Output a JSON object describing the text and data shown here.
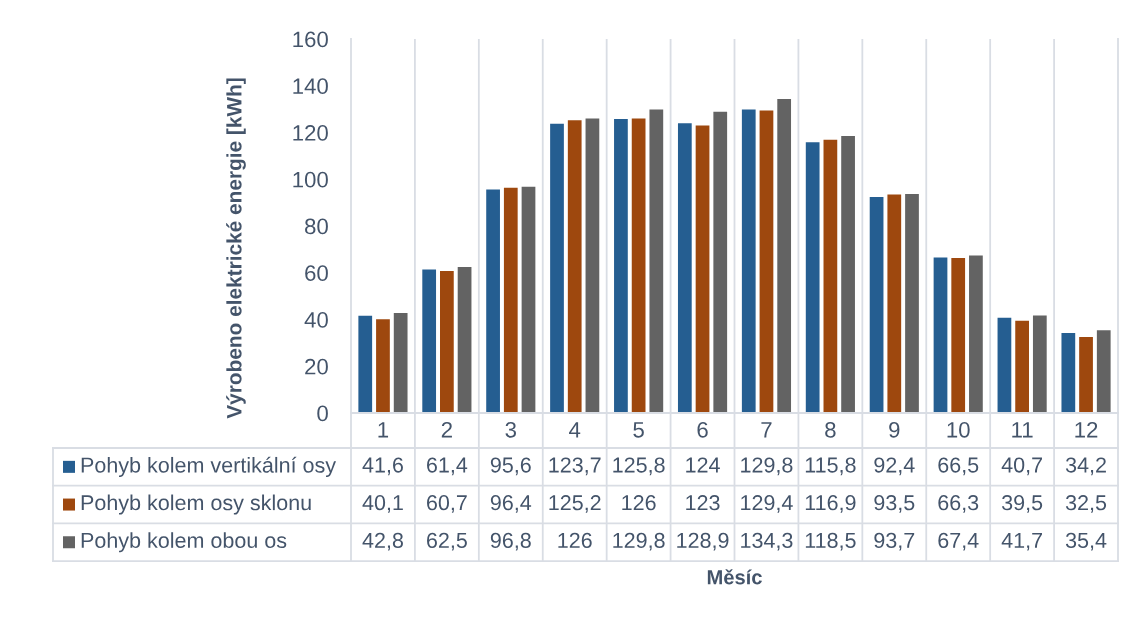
{
  "chart_data": {
    "type": "bar",
    "ylabel": "Výrobeno elektrické energie [kWh]",
    "categories": [
      "1",
      "2",
      "3",
      "4",
      "5",
      "6",
      "7",
      "8",
      "9",
      "10",
      "11",
      "12"
    ],
    "series": [
      {
        "name": "Pohyb kolem vertikální osy",
        "color": "#255e91",
        "values": [
          41.6,
          61.4,
          95.6,
          123.7,
          125.8,
          124,
          129.8,
          115.8,
          92.4,
          66.5,
          40.7,
          34.2
        ],
        "value_labels": [
          "41,6",
          "61,4",
          "95,6",
          "123,7",
          "125,8",
          "124",
          "129,8",
          "115,8",
          "92,4",
          "66,5",
          "40,7",
          "34,2"
        ]
      },
      {
        "name": "Pohyb kolem osy sklonu",
        "color": "#9e480e",
        "values": [
          40.1,
          60.7,
          96.4,
          125.2,
          126,
          123,
          129.4,
          116.9,
          93.5,
          66.3,
          39.5,
          32.5
        ],
        "value_labels": [
          "40,1",
          "60,7",
          "96,4",
          "125,2",
          "126",
          "123",
          "129,4",
          "116,9",
          "93,5",
          "66,3",
          "39,5",
          "32,5"
        ]
      },
      {
        "name": "Pohyb kolem obou os",
        "color": "#636363",
        "values": [
          42.8,
          62.5,
          96.8,
          126,
          129.8,
          128.9,
          134.3,
          118.5,
          93.7,
          67.4,
          41.7,
          35.4
        ],
        "value_labels": [
          "42,8",
          "62,5",
          "96,8",
          "126",
          "129,8",
          "128,9",
          "134,3",
          "118,5",
          "93,7",
          "67,4",
          "41,7",
          "35,4"
        ]
      }
    ],
    "annotations": [
      "Měsíc"
    ],
    "ylim": [
      0,
      160
    ],
    "yticks": [
      0,
      20,
      40,
      60,
      80,
      100,
      120,
      140,
      160
    ],
    "grid": "x",
    "legend": "bottom"
  }
}
